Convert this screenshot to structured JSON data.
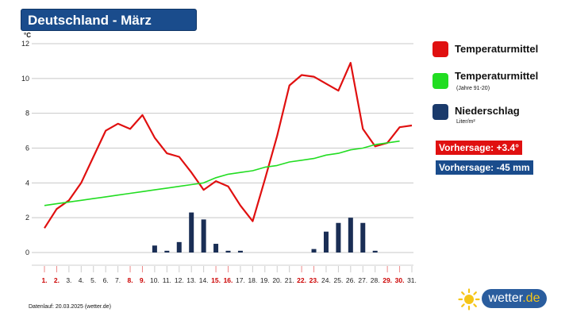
{
  "header": {
    "title": "Deutschland - März"
  },
  "legend": [
    {
      "label": "Temperaturmittel",
      "sub": "",
      "color": "#e01010"
    },
    {
      "label": "Temperaturmittel",
      "sub": "(Jahre 91-20)",
      "color": "#22dd22"
    },
    {
      "label": "Niederschlag",
      "sub": "Liter/m²",
      "color": "#1a3a6b"
    }
  ],
  "forecast": {
    "temperature": {
      "text": "Vorhersage: +3.4°",
      "color": "#e01010"
    },
    "precipitation": {
      "text": "Vorhersage: -45 mm",
      "color": "#1a4c8c"
    }
  },
  "footer": {
    "text": "Datenlauf: 20.03.2025 (wetter.de)"
  },
  "logo": {
    "name": "wetter",
    "tld": ".de",
    "icon": "sun-icon"
  },
  "chart_data": {
    "type": "line",
    "ylabel": "°C",
    "ylim": [
      0,
      12
    ],
    "yticks": [
      0,
      2,
      4,
      6,
      8,
      10,
      12
    ],
    "grid": true,
    "categories": [
      "1.",
      "2.",
      "3.",
      "4.",
      "5.",
      "6.",
      "7.",
      "8.",
      "9.",
      "10.",
      "11.",
      "12.",
      "13.",
      "14.",
      "15.",
      "16.",
      "17.",
      "18.",
      "19.",
      "20.",
      "21.",
      "22.",
      "23.",
      "24.",
      "25.",
      "26.",
      "27.",
      "28.",
      "29.",
      "30.",
      "31."
    ],
    "highlight_days": [
      1,
      2,
      8,
      9,
      15,
      16,
      22,
      23,
      29,
      30
    ],
    "highlight_color": "#cc0000",
    "series": [
      {
        "name": "Temperaturmittel",
        "kind": "line",
        "color": "#e01010",
        "values": [
          1.4,
          2.5,
          3.0,
          4.0,
          5.5,
          7.0,
          7.4,
          7.1,
          7.9,
          6.6,
          5.7,
          5.5,
          4.6,
          3.6,
          4.1,
          3.8,
          2.7,
          1.8,
          4.2,
          6.7,
          9.6,
          10.2,
          10.1,
          9.7,
          9.3,
          10.9,
          7.1,
          6.1,
          6.3,
          7.2,
          7.3
        ]
      },
      {
        "name": "Temperaturmittel (Jahre 91-20)",
        "kind": "line",
        "color": "#22dd22",
        "values": [
          2.7,
          2.8,
          2.9,
          3.0,
          3.1,
          3.2,
          3.3,
          3.4,
          3.5,
          3.6,
          3.7,
          3.8,
          3.9,
          4.0,
          4.3,
          4.5,
          4.6,
          4.7,
          4.9,
          5.0,
          5.2,
          5.3,
          5.4,
          5.6,
          5.7,
          5.9,
          6.0,
          6.2,
          6.3,
          6.4,
          null
        ]
      },
      {
        "name": "Niederschlag",
        "kind": "bar",
        "color": "#1a2e55",
        "values": [
          0,
          0,
          0,
          0,
          0,
          0,
          0,
          0,
          0,
          0.4,
          0.1,
          0.6,
          2.3,
          1.9,
          0.5,
          0.1,
          0.1,
          0,
          0,
          0,
          0,
          0,
          0.2,
          1.2,
          1.7,
          2.0,
          1.7,
          0.1,
          0,
          0,
          0
        ]
      }
    ]
  }
}
